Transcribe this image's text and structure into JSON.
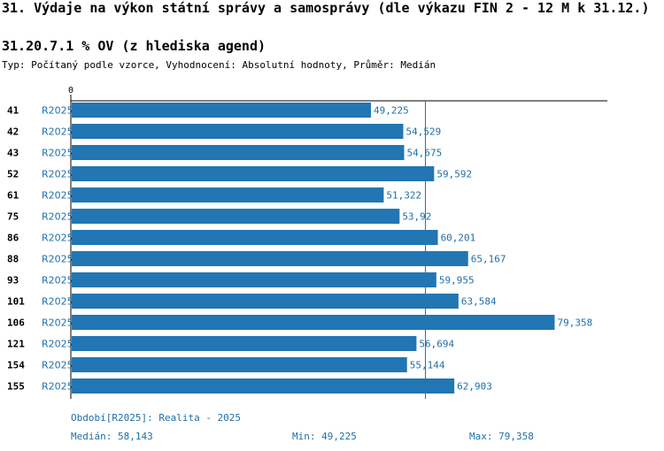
{
  "header": {
    "title": "31. Výdaje na výkon státní správy a samosprávy (dle výkazu FIN 2 - 12 M k 31.12.)",
    "subtitle": "31.20.7.1 % OV (z hlediska agend)",
    "type_line": "Typ: Počítaný podle vzorce, Vyhodnocení: Absolutní hodnoty, Průměr: Medián"
  },
  "chart_data": {
    "type": "bar",
    "orientation": "horizontal",
    "axis_zero_label": "0",
    "series_label": "R2025",
    "categories": [
      "41",
      "42",
      "43",
      "52",
      "61",
      "75",
      "86",
      "88",
      "93",
      "101",
      "106",
      "121",
      "154",
      "155"
    ],
    "values": [
      49.225,
      54.529,
      54.675,
      59.592,
      51.322,
      53.92,
      60.201,
      65.167,
      59.955,
      63.584,
      79.358,
      56.694,
      55.144,
      62.903
    ],
    "value_labels": [
      "49,225",
      "54,529",
      "54,675",
      "59,592",
      "51,322",
      "53,92",
      "60,201",
      "65,167",
      "59,955",
      "63,584",
      "79,358",
      "56,694",
      "55,144",
      "62,903"
    ],
    "median": 58.143,
    "xlim": [
      0,
      88
    ],
    "bar_color": "#2176b3",
    "median_line_color": "#2176b3"
  },
  "footer": {
    "period": "Období[R2025]: Realita - 2025",
    "median": "Medián: 58,143",
    "min": "Min: 49,225",
    "max": "Max: 79,358"
  }
}
